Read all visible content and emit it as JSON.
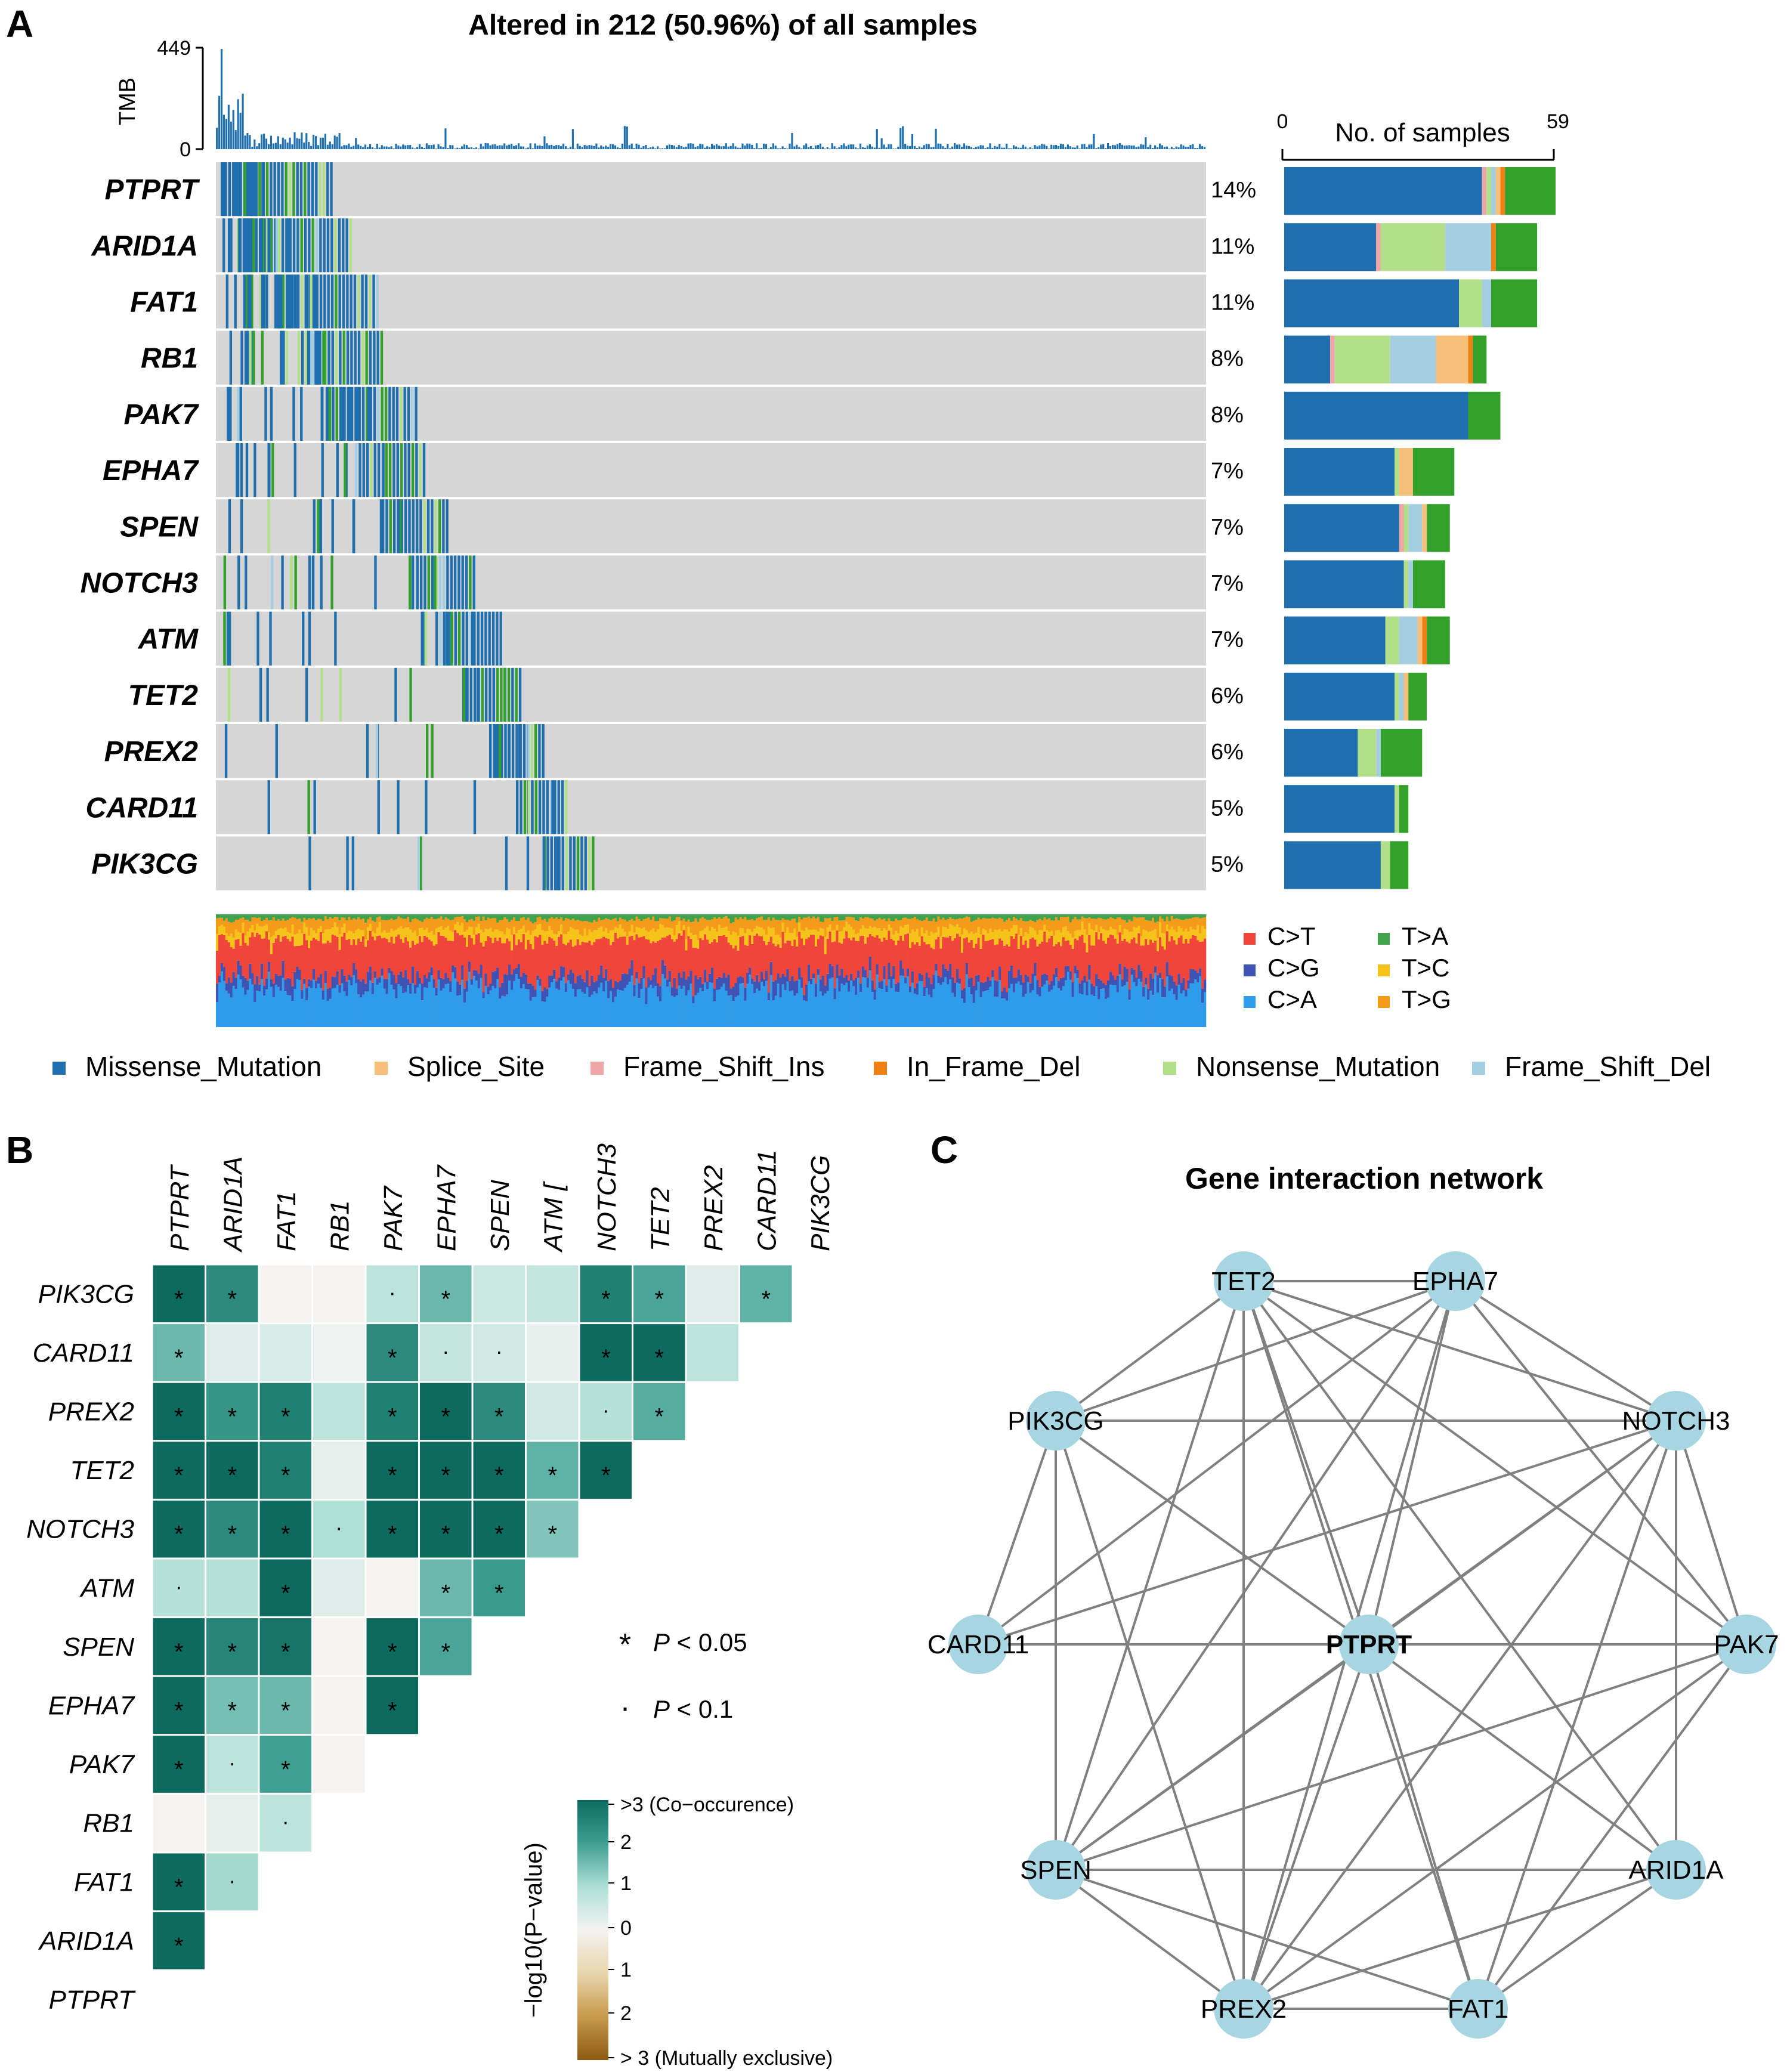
{
  "panels": {
    "a": "A",
    "b": "B",
    "c": "C"
  },
  "chart_data": [
    {
      "type": "oncoplot",
      "title": "Altered in 212 (50.96%) of all samples",
      "tmb": {
        "label": "TMB",
        "max": 449,
        "min": 0
      },
      "right_axis": {
        "label": "No. of samples",
        "min": 0,
        "max": 59
      },
      "genes": [
        {
          "name": "PTPRT",
          "pct": "14%",
          "label_color": "#2e7d4f",
          "counts": {
            "Missense_Mutation": 43,
            "Splice_Site": 1,
            "Frame_Shift_Ins": 1,
            "In_Frame_Del": 1,
            "Nonsense_Mutation": 1,
            "Frame_Shift_Del": 1,
            "T>A": 11
          }
        },
        {
          "name": "ARID1A",
          "pct": "11%",
          "label_color": "#2e7d4f",
          "counts": {
            "Missense_Mutation": 20,
            "Splice_Site": 0,
            "Frame_Shift_Ins": 1,
            "In_Frame_Del": 1,
            "Nonsense_Mutation": 14,
            "Frame_Shift_Del": 10,
            "T>A": 9
          }
        },
        {
          "name": "FAT1",
          "pct": "11%",
          "label_color": "#2e7d4f",
          "counts": {
            "Missense_Mutation": 38,
            "Splice_Site": 0,
            "Frame_Shift_Ins": 0,
            "In_Frame_Del": 0,
            "Nonsense_Mutation": 5,
            "Frame_Shift_Del": 2,
            "T>A": 10
          }
        },
        {
          "name": "RB1",
          "pct": "8%",
          "label_color": "#b43a3a",
          "counts": {
            "Missense_Mutation": 10,
            "Splice_Site": 7,
            "Frame_Shift_Ins": 1,
            "In_Frame_Del": 1,
            "Nonsense_Mutation": 12,
            "Frame_Shift_Del": 10,
            "T>A": 3
          }
        },
        {
          "name": "PAK7",
          "pct": "8%",
          "label_color": "#2e7d4f",
          "counts": {
            "Missense_Mutation": 40,
            "Splice_Site": 0,
            "Frame_Shift_Ins": 0,
            "In_Frame_Del": 0,
            "Nonsense_Mutation": 0,
            "Frame_Shift_Del": 0,
            "T>A": 7
          }
        },
        {
          "name": "EPHA7",
          "pct": "7%",
          "label_color": "#2e7d4f",
          "counts": {
            "Missense_Mutation": 24,
            "Splice_Site": 3,
            "Frame_Shift_Ins": 0,
            "In_Frame_Del": 0,
            "Nonsense_Mutation": 1,
            "Frame_Shift_Del": 0,
            "T>A": 9
          }
        },
        {
          "name": "SPEN",
          "pct": "7%",
          "label_color": "#2e7d4f",
          "counts": {
            "Missense_Mutation": 25,
            "Splice_Site": 1,
            "Frame_Shift_Ins": 1,
            "In_Frame_Del": 0,
            "Nonsense_Mutation": 1,
            "Frame_Shift_Del": 3,
            "T>A": 5
          }
        },
        {
          "name": "NOTCH3",
          "pct": "7%",
          "label_color": "#2e7d4f",
          "counts": {
            "Missense_Mutation": 26,
            "Splice_Site": 0,
            "Frame_Shift_Ins": 0,
            "In_Frame_Del": 0,
            "Nonsense_Mutation": 1,
            "Frame_Shift_Del": 1,
            "T>A": 7
          }
        },
        {
          "name": "ATM",
          "pct": "7%",
          "label_color": "#2e7d4f",
          "counts": {
            "Missense_Mutation": 22,
            "Splice_Site": 1,
            "Frame_Shift_Ins": 0,
            "In_Frame_Del": 1,
            "Nonsense_Mutation": 3,
            "Frame_Shift_Del": 4,
            "T>A": 5
          }
        },
        {
          "name": "TET2",
          "pct": "6%",
          "label_color": "#2e7d4f",
          "counts": {
            "Missense_Mutation": 24,
            "Splice_Site": 1,
            "Frame_Shift_Ins": 0,
            "In_Frame_Del": 0,
            "Nonsense_Mutation": 1,
            "Frame_Shift_Del": 1,
            "T>A": 4
          }
        },
        {
          "name": "PREX2",
          "pct": "6%",
          "label_color": "#2e7d4f",
          "counts": {
            "Missense_Mutation": 16,
            "Splice_Site": 0,
            "Frame_Shift_Ins": 0,
            "In_Frame_Del": 0,
            "Nonsense_Mutation": 4,
            "Frame_Shift_Del": 1,
            "T>A": 9
          }
        },
        {
          "name": "CARD11",
          "pct": "5%",
          "label_color": "#2e7d4f",
          "counts": {
            "Missense_Mutation": 24,
            "Splice_Site": 0,
            "Frame_Shift_Ins": 0,
            "In_Frame_Del": 0,
            "Nonsense_Mutation": 1,
            "Frame_Shift_Del": 0,
            "T>A": 2
          }
        },
        {
          "name": "PIK3CG",
          "pct": "5%",
          "label_color": "#2e7d4f",
          "counts": {
            "Missense_Mutation": 21,
            "Splice_Site": 0,
            "Frame_Shift_Ins": 0,
            "In_Frame_Del": 0,
            "Nonsense_Mutation": 2,
            "Frame_Shift_Del": 0,
            "T>A": 4
          }
        }
      ],
      "variant_colors": {
        "Missense_Mutation": "#1f6fae",
        "Splice_Site": "#f6c07a",
        "Frame_Shift_Ins": "#f0a6a6",
        "In_Frame_Del": "#f07f14",
        "Nonsense_Mutation": "#b2df8a",
        "Frame_Shift_Del": "#a6cee3",
        "T>A": "#33a02c"
      },
      "variant_legend": [
        "Missense_Mutation",
        "Splice_Site",
        "Frame_Shift_Ins",
        "In_Frame_Del",
        "Nonsense_Mutation",
        "Frame_Shift_Del"
      ],
      "titv": [
        {
          "label": "C>T",
          "color": "#f0453a"
        },
        {
          "label": "C>G",
          "color": "#3f53b4"
        },
        {
          "label": "C>A",
          "color": "#2e9cea"
        },
        {
          "label": "T>A",
          "color": "#3fa34d"
        },
        {
          "label": "T>C",
          "color": "#f6c31b"
        },
        {
          "label": "T>G",
          "color": "#f59a1a"
        }
      ]
    },
    {
      "type": "heatmap",
      "subtype": "somatic interactions (lower triangle)",
      "genes": [
        "PTPRT",
        "ARID1A",
        "FAT1",
        "RB1",
        "PAK7",
        "EPHA7",
        "SPEN",
        "ATM",
        "NOTCH3",
        "TET2",
        "PREX2",
        "CARD11",
        "PIK3CG"
      ],
      "column_labels": [
        "PTPRT",
        "ARID1A",
        "FAT1",
        "RB1",
        "PAK7",
        "EPHA7",
        "SPEN",
        "ATM [",
        "NOTCH3",
        "TET2",
        "PREX2",
        "CARD11",
        "PIK3CG"
      ],
      "row_labels": [
        "PIK3CG",
        "CARD11",
        "PREX2",
        "TET2",
        "NOTCH3",
        "ATM",
        "SPEN",
        "EPHA7",
        "PAK7",
        "RB1",
        "FAT1",
        "ARID1A",
        "PTPRT"
      ],
      "rows": [
        {
          "gene": "PIK3CG",
          "values": [
            3,
            2.4,
            0,
            0,
            0.8,
            1.6,
            0.6,
            0.7,
            2.6,
            1.9,
            0.3,
            1.7
          ],
          "sig": [
            "*",
            "*",
            "",
            "",
            ".",
            "*",
            "",
            "",
            "*",
            "*",
            "",
            "*"
          ]
        },
        {
          "gene": "CARD11",
          "values": [
            1.6,
            0.3,
            0.4,
            0.1,
            2.4,
            0.7,
            0.5,
            0.2,
            3,
            3,
            0.8
          ],
          "sig": [
            "*",
            "",
            "",
            "",
            "*",
            ".",
            ".",
            "",
            "*",
            "*",
            ""
          ]
        },
        {
          "gene": "PREX2",
          "values": [
            3,
            2.2,
            2.6,
            0.8,
            2.6,
            3,
            2.4,
            0.5,
            0.9,
            1.8
          ],
          "sig": [
            "*",
            "*",
            "*",
            "",
            "*",
            "*",
            "*",
            "",
            ".",
            "*"
          ]
        },
        {
          "gene": "TET2",
          "values": [
            3,
            3,
            2.6,
            0.2,
            3,
            3,
            3,
            1.7,
            3
          ],
          "sig": [
            "*",
            "*",
            "*",
            "",
            "*",
            "*",
            "*",
            "*",
            "*"
          ]
        },
        {
          "gene": "NOTCH3",
          "values": [
            3,
            2.4,
            3,
            1,
            3,
            3,
            3,
            1.4
          ],
          "sig": [
            "*",
            "*",
            "*",
            ".",
            "*",
            "*",
            "*",
            "*"
          ]
        },
        {
          "gene": "ATM",
          "values": [
            0.9,
            0.9,
            3,
            0.3,
            0,
            1.6,
            2.1
          ],
          "sig": [
            ".",
            "",
            "*",
            "",
            "",
            "*",
            "*"
          ]
        },
        {
          "gene": "SPEN",
          "values": [
            3,
            2.5,
            2.8,
            0,
            3,
            1.9
          ],
          "sig": [
            "*",
            "*",
            "*",
            "",
            "*",
            "*"
          ]
        },
        {
          "gene": "EPHA7",
          "values": [
            3,
            1.5,
            1.6,
            0,
            3
          ],
          "sig": [
            "*",
            "*",
            "*",
            "",
            "*"
          ]
        },
        {
          "gene": "PAK7",
          "values": [
            3,
            0.8,
            2,
            0
          ],
          "sig": [
            "*",
            ".",
            "*",
            ""
          ]
        },
        {
          "gene": "RB1",
          "values": [
            0,
            0.2,
            0.8
          ],
          "sig": [
            "",
            "",
            "."
          ]
        },
        {
          "gene": "FAT1",
          "values": [
            3,
            1.1
          ],
          "sig": [
            "*",
            "."
          ]
        },
        {
          "gene": "ARID1A",
          "values": [
            3
          ],
          "sig": [
            "*"
          ]
        },
        {
          "gene": "PTPRT",
          "values": [],
          "sig": []
        }
      ],
      "scale": {
        "min": -3,
        "max": 3
      },
      "legend": {
        "star": "*",
        "dot": "·",
        "star_label": "P < 0.05",
        "dot_label": "P < 0.1",
        "p_symbol": "P",
        "star_rest": " < 0.05",
        "dot_rest": " < 0.1"
      },
      "colorbar": {
        "title": "−log10(P−value)",
        "ticks": [
          ">3 (Co−occurence)",
          "2",
          "1",
          "0",
          "1",
          "2",
          "> 3 (Mutually exclusive)"
        ],
        "colors": [
          "#0c6b5e",
          "#3f9f91",
          "#aedfd6",
          "#f4f3f2",
          "#e8d5ad",
          "#c89a4c",
          "#8c5a12"
        ]
      }
    },
    {
      "type": "network",
      "title": "Gene interaction network",
      "center": "PTPRT",
      "nodes": [
        "TET2",
        "EPHA7",
        "NOTCH3",
        "PAK7",
        "ARID1A",
        "FAT1",
        "PREX2",
        "SPEN",
        "CARD11",
        "PIK3CG",
        "PTPRT"
      ],
      "edges": [
        [
          "TET2",
          "EPHA7"
        ],
        [
          "TET2",
          "PIK3CG"
        ],
        [
          "TET2",
          "NOTCH3"
        ],
        [
          "TET2",
          "PAK7"
        ],
        [
          "TET2",
          "PTPRT"
        ],
        [
          "TET2",
          "ARID1A"
        ],
        [
          "TET2",
          "FAT1"
        ],
        [
          "TET2",
          "PREX2"
        ],
        [
          "TET2",
          "SPEN"
        ],
        [
          "EPHA7",
          "PIK3CG"
        ],
        [
          "EPHA7",
          "NOTCH3"
        ],
        [
          "EPHA7",
          "PAK7"
        ],
        [
          "EPHA7",
          "PTPRT"
        ],
        [
          "EPHA7",
          "SPEN"
        ],
        [
          "EPHA7",
          "PREX2"
        ],
        [
          "EPHA7",
          "CARD11"
        ],
        [
          "PIK3CG",
          "NOTCH3"
        ],
        [
          "PIK3CG",
          "PTPRT"
        ],
        [
          "PIK3CG",
          "CARD11"
        ],
        [
          "PIK3CG",
          "SPEN"
        ],
        [
          "PIK3CG",
          "PREX2"
        ],
        [
          "NOTCH3",
          "CARD11"
        ],
        [
          "NOTCH3",
          "PTPRT"
        ],
        [
          "NOTCH3",
          "SPEN"
        ],
        [
          "NOTCH3",
          "PAK7"
        ],
        [
          "NOTCH3",
          "ARID1A"
        ],
        [
          "NOTCH3",
          "FAT1"
        ],
        [
          "NOTCH3",
          "PREX2"
        ],
        [
          "CARD11",
          "PTPRT"
        ],
        [
          "PTPRT",
          "PAK7"
        ],
        [
          "PTPRT",
          "SPEN"
        ],
        [
          "PTPRT",
          "PREX2"
        ],
        [
          "PTPRT",
          "FAT1"
        ],
        [
          "PTPRT",
          "ARID1A"
        ],
        [
          "PAK7",
          "SPEN"
        ],
        [
          "PAK7",
          "PREX2"
        ],
        [
          "PAK7",
          "FAT1"
        ],
        [
          "SPEN",
          "ARID1A"
        ],
        [
          "SPEN",
          "PREX2"
        ],
        [
          "SPEN",
          "FAT1"
        ],
        [
          "PREX2",
          "FAT1"
        ],
        [
          "PREX2",
          "ARID1A"
        ],
        [
          "FAT1",
          "ARID1A"
        ]
      ],
      "node_color": "#a8d5e2",
      "edge_color": "#808080"
    }
  ]
}
